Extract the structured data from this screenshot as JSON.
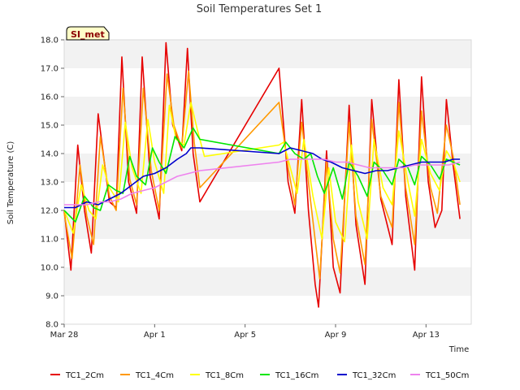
{
  "chart_data": {
    "type": "line",
    "title": "Soil Temperatures Set 1",
    "xlabel": "Time",
    "ylabel": "Soil Temperature (C)",
    "badge": "SI_met",
    "x_unit": "date (2017)",
    "xlim": [
      "Mar 28",
      "Apr 15"
    ],
    "ylim": [
      8.0,
      18.0
    ],
    "x_ticks": [
      {
        "x": 0,
        "label": "Mar 28"
      },
      {
        "x": 4,
        "label": "Apr 1"
      },
      {
        "x": 8,
        "label": "Apr 5"
      },
      {
        "x": 12,
        "label": "Apr 9"
      },
      {
        "x": 16,
        "label": "Apr 13"
      }
    ],
    "y_ticks": [
      "8.0",
      "9.0",
      "10.0",
      "11.0",
      "12.0",
      "13.0",
      "14.0",
      "15.0",
      "16.0",
      "17.0",
      "18.0"
    ],
    "grid": "horizontal bands",
    "legend_position": "bottom",
    "series": [
      {
        "name": "TC1_2Cm",
        "color": "#e60000",
        "points": [
          [
            0.0,
            12.0
          ],
          [
            0.3,
            9.9
          ],
          [
            0.6,
            14.3
          ],
          [
            0.9,
            12.0
          ],
          [
            1.2,
            10.5
          ],
          [
            1.5,
            15.4
          ],
          [
            2.0,
            12.3
          ],
          [
            2.3,
            12.1
          ],
          [
            2.55,
            17.4
          ],
          [
            2.85,
            13.0
          ],
          [
            3.2,
            11.9
          ],
          [
            3.45,
            17.4
          ],
          [
            3.8,
            13.2
          ],
          [
            4.2,
            11.7
          ],
          [
            4.5,
            17.9
          ],
          [
            4.8,
            15.0
          ],
          [
            5.2,
            14.1
          ],
          [
            5.45,
            17.7
          ],
          [
            5.7,
            14.0
          ],
          [
            6.0,
            12.3
          ],
          [
            9.5,
            17.0
          ],
          [
            9.9,
            13.0
          ],
          [
            10.2,
            11.9
          ],
          [
            10.5,
            15.9
          ],
          [
            10.8,
            12.0
          ],
          [
            11.1,
            9.4
          ],
          [
            11.25,
            8.6
          ],
          [
            11.6,
            14.1
          ],
          [
            11.9,
            10.0
          ],
          [
            12.2,
            9.1
          ],
          [
            12.6,
            15.7
          ],
          [
            12.9,
            11.5
          ],
          [
            13.3,
            9.4
          ],
          [
            13.6,
            15.9
          ],
          [
            14.0,
            12.4
          ],
          [
            14.5,
            10.8
          ],
          [
            14.8,
            16.6
          ],
          [
            15.1,
            12.5
          ],
          [
            15.5,
            9.9
          ],
          [
            15.8,
            16.7
          ],
          [
            16.1,
            13.0
          ],
          [
            16.4,
            11.4
          ],
          [
            16.7,
            12.0
          ],
          [
            16.9,
            15.9
          ],
          [
            17.2,
            13.6
          ],
          [
            17.5,
            11.7
          ]
        ]
      },
      {
        "name": "TC1_4Cm",
        "color": "#ff9900",
        "points": [
          [
            0.0,
            11.9
          ],
          [
            0.35,
            10.3
          ],
          [
            0.7,
            13.6
          ],
          [
            1.0,
            11.8
          ],
          [
            1.3,
            10.8
          ],
          [
            1.6,
            14.6
          ],
          [
            2.0,
            12.5
          ],
          [
            2.3,
            12.0
          ],
          [
            2.6,
            16.3
          ],
          [
            2.9,
            13.1
          ],
          [
            3.2,
            12.2
          ],
          [
            3.5,
            16.3
          ],
          [
            3.85,
            13.4
          ],
          [
            4.2,
            12.0
          ],
          [
            4.55,
            16.8
          ],
          [
            4.85,
            15.0
          ],
          [
            5.2,
            14.2
          ],
          [
            5.5,
            16.9
          ],
          [
            5.75,
            14.4
          ],
          [
            6.0,
            12.8
          ],
          [
            9.5,
            15.8
          ],
          [
            9.9,
            13.5
          ],
          [
            10.2,
            12.2
          ],
          [
            10.5,
            15.1
          ],
          [
            10.9,
            12.3
          ],
          [
            11.3,
            9.6
          ],
          [
            11.6,
            13.7
          ],
          [
            11.9,
            11.0
          ],
          [
            12.2,
            9.8
          ],
          [
            12.6,
            15.1
          ],
          [
            12.9,
            11.8
          ],
          [
            13.3,
            10.1
          ],
          [
            13.6,
            15.2
          ],
          [
            14.0,
            12.5
          ],
          [
            14.5,
            11.4
          ],
          [
            14.8,
            15.8
          ],
          [
            15.1,
            12.8
          ],
          [
            15.5,
            10.8
          ],
          [
            15.8,
            15.5
          ],
          [
            16.2,
            12.8
          ],
          [
            16.5,
            11.9
          ],
          [
            16.9,
            15.0
          ],
          [
            17.2,
            13.9
          ],
          [
            17.5,
            12.2
          ]
        ]
      },
      {
        "name": "TC1_8Cm",
        "color": "#ffff00",
        "points": [
          [
            0.0,
            12.0
          ],
          [
            0.4,
            11.2
          ],
          [
            0.75,
            12.9
          ],
          [
            1.1,
            12.0
          ],
          [
            1.4,
            11.7
          ],
          [
            1.7,
            13.6
          ],
          [
            2.0,
            12.8
          ],
          [
            2.4,
            12.3
          ],
          [
            2.7,
            15.1
          ],
          [
            3.0,
            13.5
          ],
          [
            3.4,
            12.6
          ],
          [
            3.7,
            15.2
          ],
          [
            4.0,
            13.7
          ],
          [
            4.4,
            12.6
          ],
          [
            4.65,
            15.7
          ],
          [
            4.95,
            14.5
          ],
          [
            5.3,
            14.3
          ],
          [
            5.6,
            15.8
          ],
          [
            5.9,
            14.8
          ],
          [
            6.2,
            13.9
          ],
          [
            9.5,
            14.3
          ],
          [
            9.7,
            14.4
          ],
          [
            10.0,
            13.5
          ],
          [
            10.3,
            12.6
          ],
          [
            10.6,
            14.5
          ],
          [
            11.0,
            12.5
          ],
          [
            11.4,
            11.0
          ],
          [
            11.7,
            13.5
          ],
          [
            12.0,
            11.6
          ],
          [
            12.4,
            10.9
          ],
          [
            12.7,
            14.3
          ],
          [
            13.0,
            12.3
          ],
          [
            13.4,
            11.0
          ],
          [
            13.7,
            14.5
          ],
          [
            14.1,
            12.8
          ],
          [
            14.5,
            12.2
          ],
          [
            14.8,
            14.8
          ],
          [
            15.2,
            13.0
          ],
          [
            15.5,
            11.8
          ],
          [
            15.8,
            14.5
          ],
          [
            16.2,
            13.3
          ],
          [
            16.6,
            12.7
          ],
          [
            16.9,
            14.1
          ],
          [
            17.2,
            13.7
          ],
          [
            17.5,
            13.0
          ]
        ]
      },
      {
        "name": "TC1_16Cm",
        "color": "#00e600",
        "points": [
          [
            0.0,
            12.0
          ],
          [
            0.5,
            11.6
          ],
          [
            0.9,
            12.5
          ],
          [
            1.3,
            12.1
          ],
          [
            1.6,
            12.0
          ],
          [
            1.95,
            12.9
          ],
          [
            2.3,
            12.7
          ],
          [
            2.6,
            12.6
          ],
          [
            2.9,
            13.9
          ],
          [
            3.2,
            13.2
          ],
          [
            3.6,
            12.9
          ],
          [
            3.9,
            14.2
          ],
          [
            4.2,
            13.7
          ],
          [
            4.5,
            13.3
          ],
          [
            4.9,
            14.6
          ],
          [
            5.3,
            14.2
          ],
          [
            5.7,
            14.9
          ],
          [
            6.0,
            14.5
          ],
          [
            9.5,
            14.0
          ],
          [
            9.8,
            14.4
          ],
          [
            10.2,
            14.0
          ],
          [
            10.6,
            13.8
          ],
          [
            10.9,
            14.0
          ],
          [
            11.2,
            13.2
          ],
          [
            11.5,
            12.6
          ],
          [
            11.9,
            13.5
          ],
          [
            12.3,
            12.4
          ],
          [
            12.6,
            13.7
          ],
          [
            13.0,
            13.2
          ],
          [
            13.4,
            12.5
          ],
          [
            13.7,
            13.7
          ],
          [
            14.1,
            13.4
          ],
          [
            14.5,
            12.9
          ],
          [
            14.8,
            13.8
          ],
          [
            15.2,
            13.5
          ],
          [
            15.5,
            12.9
          ],
          [
            15.8,
            13.9
          ],
          [
            16.2,
            13.6
          ],
          [
            16.6,
            13.1
          ],
          [
            16.9,
            13.8
          ],
          [
            17.2,
            13.7
          ],
          [
            17.5,
            13.6
          ]
        ]
      },
      {
        "name": "TC1_32Cm",
        "color": "#0000cc",
        "points": [
          [
            0.0,
            12.1
          ],
          [
            0.5,
            12.1
          ],
          [
            1.0,
            12.3
          ],
          [
            1.5,
            12.2
          ],
          [
            2.0,
            12.4
          ],
          [
            2.5,
            12.6
          ],
          [
            3.0,
            12.9
          ],
          [
            3.5,
            13.2
          ],
          [
            4.0,
            13.3
          ],
          [
            4.5,
            13.5
          ],
          [
            5.0,
            13.8
          ],
          [
            5.4,
            14.0
          ],
          [
            5.6,
            14.2
          ],
          [
            6.0,
            14.2
          ],
          [
            9.5,
            14.0
          ],
          [
            10.0,
            14.2
          ],
          [
            10.5,
            14.1
          ],
          [
            11.0,
            14.0
          ],
          [
            11.4,
            13.8
          ],
          [
            11.8,
            13.7
          ],
          [
            12.3,
            13.5
          ],
          [
            12.8,
            13.4
          ],
          [
            13.3,
            13.3
          ],
          [
            13.8,
            13.4
          ],
          [
            14.3,
            13.4
          ],
          [
            14.8,
            13.5
          ],
          [
            15.3,
            13.6
          ],
          [
            15.8,
            13.7
          ],
          [
            16.3,
            13.7
          ],
          [
            16.8,
            13.7
          ],
          [
            17.2,
            13.8
          ],
          [
            17.5,
            13.8
          ]
        ]
      },
      {
        "name": "TC1_50Cm",
        "color": "#ee82ee",
        "points": [
          [
            0.0,
            12.2
          ],
          [
            0.5,
            12.2
          ],
          [
            1.0,
            12.2
          ],
          [
            1.5,
            12.3
          ],
          [
            2.0,
            12.3
          ],
          [
            2.5,
            12.4
          ],
          [
            3.0,
            12.6
          ],
          [
            3.5,
            12.7
          ],
          [
            4.0,
            12.8
          ],
          [
            4.5,
            13.0
          ],
          [
            5.0,
            13.2
          ],
          [
            5.5,
            13.3
          ],
          [
            6.0,
            13.4
          ],
          [
            9.5,
            13.7
          ],
          [
            10.0,
            13.8
          ],
          [
            10.5,
            13.8
          ],
          [
            11.0,
            13.8
          ],
          [
            11.5,
            13.8
          ],
          [
            12.0,
            13.7
          ],
          [
            12.5,
            13.7
          ],
          [
            13.0,
            13.6
          ],
          [
            13.5,
            13.5
          ],
          [
            14.0,
            13.5
          ],
          [
            14.5,
            13.5
          ],
          [
            15.0,
            13.5
          ],
          [
            15.5,
            13.6
          ],
          [
            16.0,
            13.6
          ],
          [
            16.5,
            13.6
          ],
          [
            17.0,
            13.6
          ],
          [
            17.5,
            13.7
          ]
        ]
      }
    ]
  }
}
